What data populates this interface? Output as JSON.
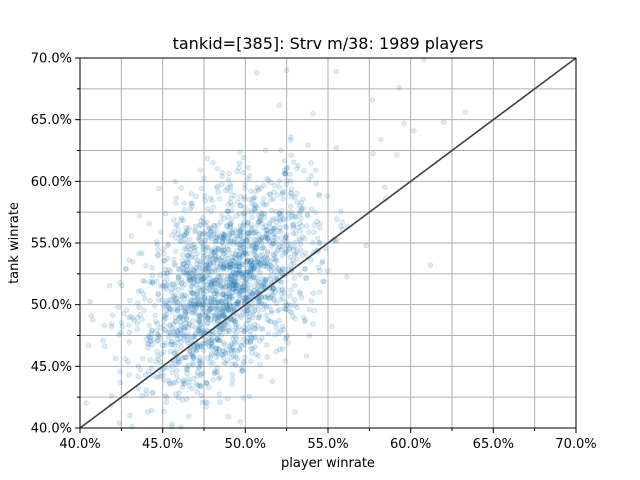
{
  "chart_data": {
    "type": "scatter",
    "title": "tankid=[385]: Strv m/38: 1989 players",
    "xlabel": "player winrate",
    "ylabel": "tank winrate",
    "xlim": [
      0.4,
      0.7
    ],
    "ylim": [
      0.4,
      0.7
    ],
    "x_ticks": [
      0.4,
      0.45,
      0.5,
      0.55,
      0.6,
      0.65,
      0.7
    ],
    "y_ticks": [
      0.4,
      0.45,
      0.5,
      0.55,
      0.6,
      0.65,
      0.7
    ],
    "x_tick_labels": [
      "40.0%",
      "45.0%",
      "50.0%",
      "55.0%",
      "60.0%",
      "65.0%",
      "70.0%"
    ],
    "y_tick_labels": [
      "40.0%",
      "45.0%",
      "50.0%",
      "55.0%",
      "60.0%",
      "65.0%",
      "70.0%"
    ],
    "grid": true,
    "reference_line": {
      "x": [
        0.4,
        0.7
      ],
      "y": [
        0.4,
        0.7
      ],
      "color": "#404040"
    },
    "point_count": 1989,
    "point_color": "#1f77b4",
    "point_alpha": 0.15,
    "point_distribution": {
      "x_mean": 0.488,
      "x_sd": 0.027,
      "y_mean": 0.515,
      "y_sd": 0.042,
      "xy_correlation": 0.45
    },
    "outliers": [
      [
        0.555,
        0.689
      ],
      [
        0.577,
        0.666
      ],
      [
        0.593,
        0.676
      ],
      [
        0.608,
        0.699
      ],
      [
        0.582,
        0.634
      ],
      [
        0.62,
        0.648
      ],
      [
        0.633,
        0.656
      ],
      [
        0.602,
        0.641
      ],
      [
        0.612,
        0.532
      ],
      [
        0.573,
        0.548
      ],
      [
        0.525,
        0.69
      ],
      [
        0.541,
        0.655
      ],
      [
        0.507,
        0.688
      ],
      [
        0.53,
        0.413
      ],
      [
        0.497,
        0.405
      ],
      [
        0.428,
        0.529
      ],
      [
        0.436,
        0.572
      ],
      [
        0.444,
        0.429
      ],
      [
        0.596,
        0.647
      ]
    ]
  }
}
